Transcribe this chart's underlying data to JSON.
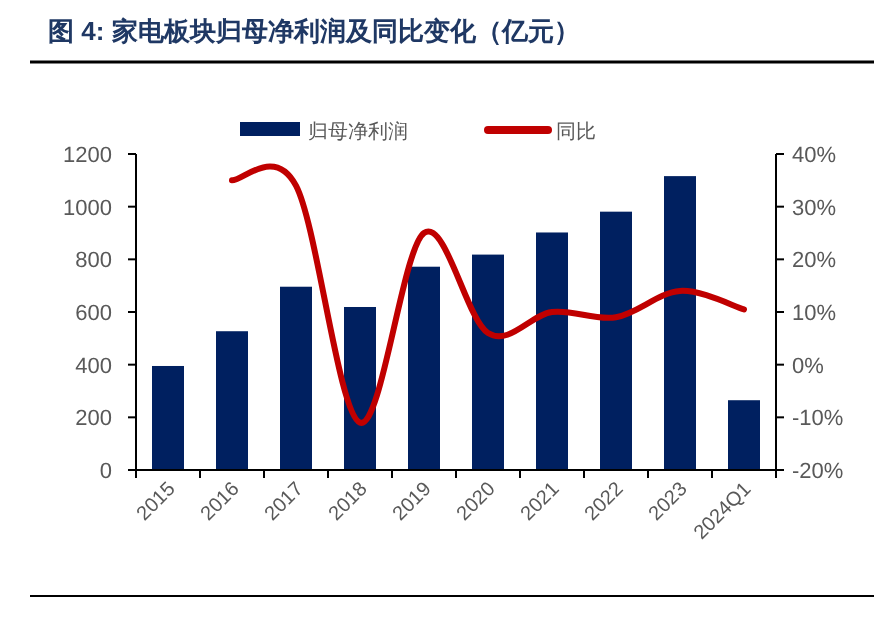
{
  "chart_data": {
    "type": "bar",
    "title": "图 4: 家电板块归母净利润及同比变化（亿元）",
    "categories": [
      "2015",
      "2016",
      "2017",
      "2018",
      "2019",
      "2020",
      "2021",
      "2022",
      "2023",
      "2024Q1"
    ],
    "series": [
      {
        "name": "归母净利润",
        "color": "#002060",
        "values": [
          395,
          527,
          696,
          619,
          772,
          818,
          902,
          981,
          1116,
          265
        ]
      },
      {
        "name": "同比",
        "type": "line",
        "axis": "y2",
        "color": "#c00000",
        "values": [
          null,
          35,
          34,
          -11,
          25,
          6,
          10,
          9,
          14,
          10.5
        ]
      }
    ],
    "ylim": [
      0,
      1200
    ],
    "yticks": [
      0,
      200,
      400,
      600,
      800,
      1000,
      1200
    ],
    "y2lim": [
      -20,
      40
    ],
    "y2ticks": [
      {
        "value": -20,
        "label": "-20%"
      },
      {
        "value": -10,
        "label": "-10%"
      },
      {
        "value": 0,
        "label": "0%"
      },
      {
        "value": 10,
        "label": "10%"
      },
      {
        "value": 20,
        "label": "20%"
      },
      {
        "value": 30,
        "label": "30%"
      },
      {
        "value": 40,
        "label": "40%"
      }
    ],
    "legend": "top",
    "grid": false
  }
}
